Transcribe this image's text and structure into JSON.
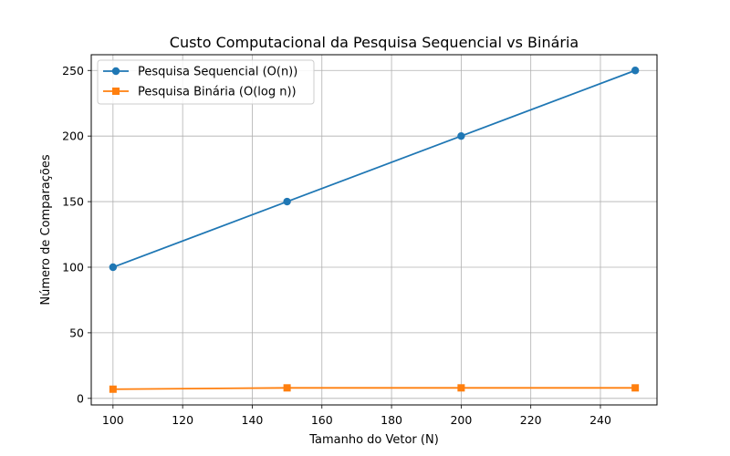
{
  "chart_data": {
    "type": "line",
    "title": "Custo Computacional da Pesquisa Sequencial vs Binária",
    "xlabel": "Tamanho do Vetor (N)",
    "ylabel": "Número de Comparações",
    "x": [
      100,
      150,
      200,
      250
    ],
    "xlim": [
      93.75,
      256.25
    ],
    "ylim": [
      -5,
      262
    ],
    "xticks": [
      100,
      120,
      140,
      160,
      180,
      200,
      220,
      240
    ],
    "yticks": [
      0,
      50,
      100,
      150,
      200,
      250
    ],
    "grid": true,
    "legend_position": "top-left",
    "series": [
      {
        "name": "Pesquisa Sequencial (O(n))",
        "values": [
          100,
          150,
          200,
          250
        ],
        "color": "#1f77b4",
        "marker": "circle"
      },
      {
        "name": "Pesquisa Binária (O(log n))",
        "values": [
          7,
          8,
          8,
          8
        ],
        "color": "#ff7f0e",
        "marker": "square"
      }
    ]
  }
}
